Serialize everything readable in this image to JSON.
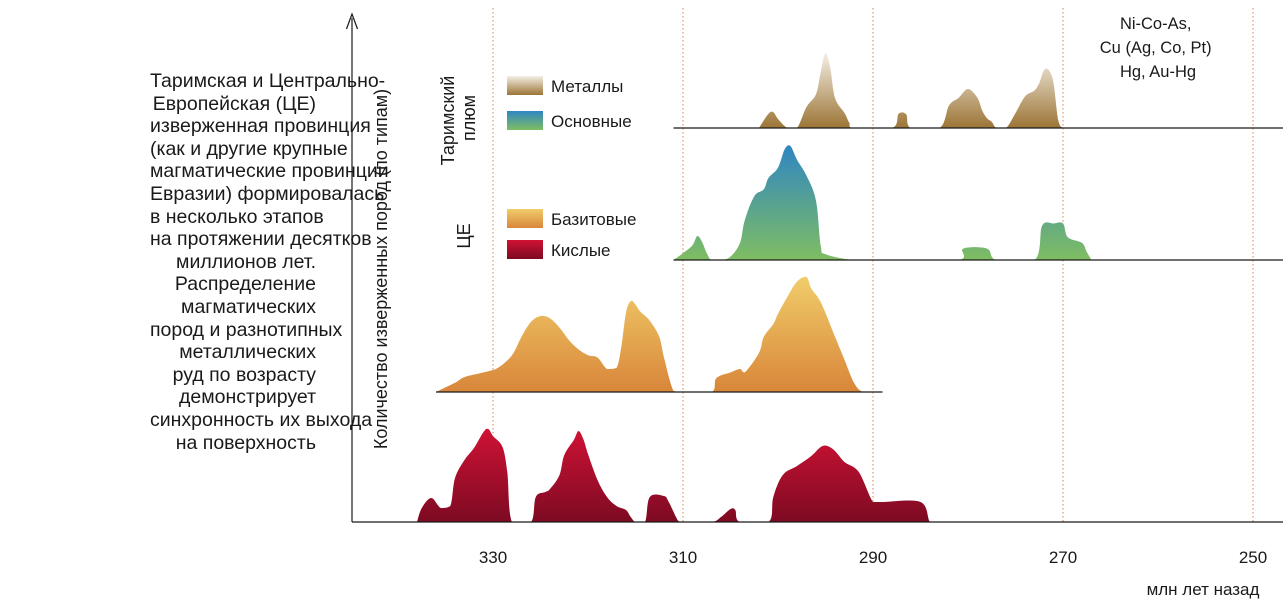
{
  "caption": [
    "Таримская и Центрально-",
    "Европейская (ЦЕ)",
    "изверженная провинция",
    "(как и другие крупные",
    "магматические провинции",
    "Евразии) формировалась",
    "в несколько этапов",
    "на протяжении десятков",
    "миллионов лет.",
    "Распределение",
    "магматических",
    "пород и разнотипных",
    "металлических",
    "руд по возрасту",
    "демонстрирует",
    "синхронность их выхода",
    "на поверхность"
  ],
  "chart_data": {
    "type": "area",
    "xlabel": "млн лет назад",
    "ylabel": "Количество изверженных пород (по типам)",
    "x_reversed": true,
    "xlim": [
      340,
      246
    ],
    "xticks": [
      330,
      310,
      290,
      270,
      250
    ],
    "xtick_labels": [
      "330",
      "310",
      "290",
      "270",
      "250"
    ],
    "row_labels": {
      "tarim": "Таримский\nплюм",
      "ce": "ЦЕ"
    },
    "legend": [
      {
        "key": "metals",
        "label": "Металлы",
        "colors": [
          "#f4efe4",
          "#9c7536"
        ]
      },
      {
        "key": "basic",
        "label": "Основные",
        "colors": [
          "#2f86c3",
          "#7fbd62"
        ]
      },
      {
        "key": "basite",
        "label": "Базитовые",
        "colors": [
          "#f0cd6a",
          "#d9863a"
        ]
      },
      {
        "key": "felsic",
        "label": "Кислые",
        "colors": [
          "#cf1235",
          "#7d0a22"
        ]
      }
    ],
    "annotation": [
      "Ni-Co-As,",
      "Cu (Ag, Co, Pt)",
      "Hg, Au-Hg"
    ],
    "series": [
      {
        "key": "metals",
        "name": "Металлы",
        "points": [
          [
            302,
            0
          ],
          [
            301,
            0.19
          ],
          [
            300.5,
            0.21
          ],
          [
            300,
            0.12
          ],
          [
            299,
            0
          ],
          [
            298,
            0
          ],
          [
            297,
            0.28
          ],
          [
            296,
            0.45
          ],
          [
            295.5,
            0.75
          ],
          [
            295,
            1.0
          ],
          [
            294.5,
            0.8
          ],
          [
            294,
            0.4
          ],
          [
            293,
            0.2
          ],
          [
            292.5,
            0.07
          ],
          [
            292,
            0
          ],
          [
            288,
            0
          ],
          [
            287.3,
            0.19
          ],
          [
            286.5,
            0.18
          ],
          [
            286,
            0
          ],
          [
            283,
            0
          ],
          [
            282,
            0.3
          ],
          [
            281,
            0.4
          ],
          [
            280,
            0.52
          ],
          [
            279,
            0.4
          ],
          [
            278.5,
            0.23
          ],
          [
            278,
            0.13
          ],
          [
            277.5,
            0.08
          ],
          [
            277,
            0
          ],
          [
            276,
            0
          ],
          [
            275,
            0.2
          ],
          [
            274,
            0.42
          ],
          [
            273,
            0.5
          ],
          [
            272.5,
            0.6
          ],
          [
            272,
            0.77
          ],
          [
            271.5,
            0.77
          ],
          [
            271,
            0.6
          ],
          [
            270.5,
            0.1
          ],
          [
            270,
            0
          ]
        ]
      },
      {
        "key": "basic",
        "name": "Основные",
        "points": [
          [
            311,
            0
          ],
          [
            310,
            0.06
          ],
          [
            309,
            0.13
          ],
          [
            308.5,
            0.21
          ],
          [
            308,
            0.16
          ],
          [
            307.5,
            0.06
          ],
          [
            307,
            0
          ],
          [
            306,
            0
          ],
          [
            305,
            0.03
          ],
          [
            304,
            0.15
          ],
          [
            303.5,
            0.35
          ],
          [
            302.5,
            0.56
          ],
          [
            301.5,
            0.62
          ],
          [
            301,
            0.72
          ],
          [
            300,
            0.81
          ],
          [
            299.3,
            0.97
          ],
          [
            298.7,
            1.0
          ],
          [
            298,
            0.88
          ],
          [
            297,
            0.74
          ],
          [
            296,
            0.52
          ],
          [
            295.5,
            0.12
          ],
          [
            295,
            0.05
          ],
          [
            292,
            0
          ],
          [
            288,
            0
          ],
          [
            281,
            0
          ],
          [
            280.5,
            0.1
          ],
          [
            278,
            0.1
          ],
          [
            277,
            0
          ],
          [
            273,
            0
          ],
          [
            272.2,
            0.3
          ],
          [
            271,
            0.32
          ],
          [
            270,
            0.32
          ],
          [
            269.5,
            0.2
          ],
          [
            268,
            0.15
          ],
          [
            267.5,
            0.07
          ],
          [
            267,
            0
          ]
        ]
      },
      {
        "key": "basite",
        "name": "Базитовые",
        "points": [
          [
            336,
            0
          ],
          [
            334,
            0.08
          ],
          [
            333,
            0.13
          ],
          [
            331,
            0.17
          ],
          [
            329.5,
            0.21
          ],
          [
            328,
            0.32
          ],
          [
            327,
            0.48
          ],
          [
            326,
            0.61
          ],
          [
            325,
            0.66
          ],
          [
            324,
            0.64
          ],
          [
            323,
            0.56
          ],
          [
            322,
            0.45
          ],
          [
            321,
            0.37
          ],
          [
            320,
            0.32
          ],
          [
            319,
            0.3
          ],
          [
            318,
            0.2
          ],
          [
            317,
            0.21
          ],
          [
            316.5,
            0.39
          ],
          [
            316,
            0.69
          ],
          [
            315.5,
            0.79
          ],
          [
            315,
            0.76
          ],
          [
            314.5,
            0.7
          ],
          [
            313.5,
            0.62
          ],
          [
            312.5,
            0.48
          ],
          [
            312,
            0.3
          ],
          [
            311,
            0.01
          ],
          [
            310,
            0
          ],
          [
            307,
            0
          ],
          [
            306.5,
            0.12
          ],
          [
            305,
            0.17
          ],
          [
            304,
            0.2
          ],
          [
            303.5,
            0.17
          ],
          [
            302,
            0.34
          ],
          [
            301.5,
            0.48
          ],
          [
            300.5,
            0.59
          ],
          [
            300,
            0.68
          ],
          [
            299,
            0.83
          ],
          [
            298,
            0.96
          ],
          [
            297,
            1.0
          ],
          [
            296.5,
            0.9
          ],
          [
            295.5,
            0.78
          ],
          [
            294,
            0.48
          ],
          [
            293,
            0.28
          ],
          [
            292,
            0.08
          ],
          [
            291,
            0
          ],
          [
            289,
            0
          ]
        ]
      },
      {
        "key": "felsic",
        "name": "Кислые",
        "points": [
          [
            338,
            0
          ],
          [
            337.5,
            0.14
          ],
          [
            336.5,
            0.24
          ],
          [
            335.5,
            0.14
          ],
          [
            334.5,
            0.16
          ],
          [
            334,
            0.44
          ],
          [
            333,
            0.62
          ],
          [
            332,
            0.74
          ],
          [
            331,
            0.9
          ],
          [
            330.5,
            0.93
          ],
          [
            330,
            0.86
          ],
          [
            329,
            0.75
          ],
          [
            328.5,
            0.5
          ],
          [
            328,
            0
          ],
          [
            326,
            0
          ],
          [
            325.5,
            0.25
          ],
          [
            324.5,
            0.3
          ],
          [
            324,
            0.33
          ],
          [
            323,
            0.47
          ],
          [
            322.5,
            0.67
          ],
          [
            321.5,
            0.82
          ],
          [
            321,
            0.91
          ],
          [
            320.5,
            0.83
          ],
          [
            320,
            0.68
          ],
          [
            319,
            0.42
          ],
          [
            318,
            0.25
          ],
          [
            317,
            0.16
          ],
          [
            316,
            0.12
          ],
          [
            315.5,
            0.05
          ],
          [
            315,
            0
          ],
          [
            314,
            0
          ],
          [
            313.5,
            0.25
          ],
          [
            312,
            0.26
          ],
          [
            311.5,
            0.2
          ],
          [
            310.5,
            0.01
          ],
          [
            310,
            0
          ],
          [
            307,
            0
          ],
          [
            306,
            0.05
          ],
          [
            305,
            0.13
          ],
          [
            304.5,
            0.12
          ],
          [
            304,
            0
          ],
          [
            301,
            0
          ],
          [
            300.5,
            0.25
          ],
          [
            299.5,
            0.47
          ],
          [
            298,
            0.56
          ],
          [
            296.5,
            0.66
          ],
          [
            295.5,
            0.75
          ],
          [
            294.8,
            0.76
          ],
          [
            294,
            0.71
          ],
          [
            293,
            0.6
          ],
          [
            291.5,
            0.5
          ],
          [
            290,
            0.2
          ],
          [
            289,
            0.2
          ],
          [
            285,
            0.2
          ],
          [
            284,
            0
          ],
          [
            283,
            0
          ]
        ]
      }
    ]
  }
}
